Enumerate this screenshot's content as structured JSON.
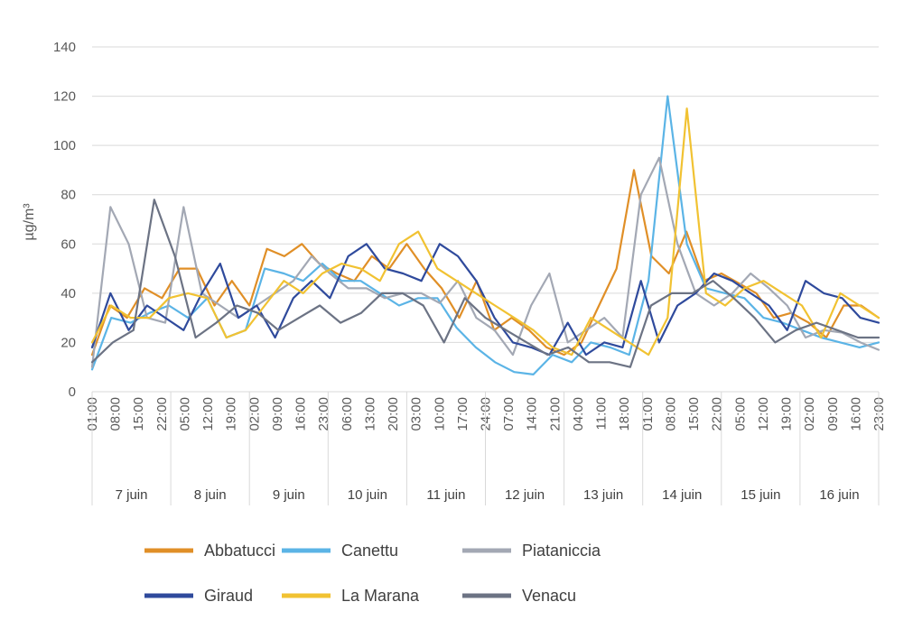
{
  "chart_data": {
    "type": "line",
    "ylabel": "µg/m³",
    "ylim": [
      0,
      140
    ],
    "yticks": [
      0,
      20,
      40,
      60,
      80,
      100,
      120,
      140
    ],
    "grid": "horizontal",
    "legend_position": "bottom",
    "time_step_hours": 7,
    "time_ticks": [
      "01:00",
      "08:00",
      "15:00",
      "22:00",
      "05:00",
      "12:00",
      "19:00",
      "02:00",
      "09:00",
      "16:00",
      "23:00",
      "06:00",
      "13:00",
      "20:00",
      "03:00",
      "10:00",
      "17:00",
      "24:00",
      "07:00",
      "14:00",
      "21:00",
      "04:00",
      "11:00",
      "18:00",
      "01:00",
      "08:00",
      "15:00",
      "22:00",
      "05:00",
      "12:00",
      "19:00",
      "02:00",
      "09:00",
      "16:00",
      "23:00"
    ],
    "days": [
      "7 juin",
      "8 juin",
      "9 juin",
      "10 juin",
      "11 juin",
      "12 juin",
      "13 juin",
      "14 juin",
      "15 juin",
      "16 juin"
    ],
    "series": [
      {
        "name": "Abbatucci",
        "color": "#E08F27",
        "values": [
          15,
          35,
          30,
          42,
          38,
          50,
          50,
          35,
          45,
          35,
          58,
          55,
          60,
          52,
          48,
          45,
          55,
          50,
          60,
          50,
          42,
          30,
          45,
          25,
          30,
          25,
          18,
          15,
          20,
          35,
          50,
          90,
          55,
          48,
          65,
          45,
          48,
          44,
          40,
          30,
          32,
          28,
          22,
          35,
          35,
          30
        ]
      },
      {
        "name": "Canettu",
        "color": "#5BB4E6",
        "values": [
          9,
          30,
          28,
          32,
          35,
          30,
          38,
          22,
          25,
          50,
          48,
          45,
          52,
          45,
          45,
          40,
          35,
          38,
          38,
          26,
          18,
          12,
          8,
          7,
          15,
          12,
          20,
          18,
          15,
          45,
          120,
          60,
          42,
          40,
          38,
          30,
          28,
          25,
          22,
          20,
          18,
          20
        ]
      },
      {
        "name": "Piataniccia",
        "color": "#A3A8B4",
        "values": [
          10,
          75,
          60,
          30,
          28,
          75,
          40,
          35,
          30,
          35,
          40,
          45,
          55,
          48,
          42,
          42,
          38,
          40,
          40,
          36,
          45,
          30,
          25,
          15,
          35,
          48,
          20,
          25,
          30,
          22,
          80,
          95,
          60,
          40,
          35,
          40,
          48,
          42,
          35,
          22,
          25,
          24,
          20,
          17
        ]
      },
      {
        "name": "Giraud",
        "color": "#2F4A9C",
        "values": [
          18,
          40,
          25,
          35,
          30,
          25,
          40,
          52,
          30,
          35,
          22,
          38,
          45,
          38,
          55,
          60,
          50,
          48,
          45,
          60,
          55,
          45,
          30,
          20,
          18,
          15,
          28,
          15,
          20,
          18,
          45,
          20,
          35,
          40,
          48,
          45,
          40,
          35,
          25,
          45,
          40,
          38,
          30,
          28
        ]
      },
      {
        "name": "La Marana",
        "color": "#F1C232",
        "values": [
          20,
          35,
          30,
          30,
          38,
          40,
          38,
          22,
          25,
          35,
          45,
          40,
          48,
          52,
          50,
          45,
          60,
          65,
          50,
          45,
          40,
          35,
          30,
          25,
          18,
          15,
          30,
          25,
          20,
          15,
          30,
          115,
          40,
          35,
          42,
          45,
          40,
          35,
          22,
          40,
          35,
          30
        ]
      },
      {
        "name": "Venacu",
        "color": "#6C7384",
        "values": [
          12,
          20,
          25,
          78,
          55,
          22,
          28,
          35,
          32,
          25,
          30,
          35,
          28,
          32,
          40,
          40,
          35,
          20,
          38,
          30,
          25,
          20,
          15,
          18,
          12,
          12,
          10,
          35,
          40,
          40,
          45,
          38,
          30,
          20,
          25,
          28,
          25,
          22,
          22
        ]
      }
    ]
  }
}
